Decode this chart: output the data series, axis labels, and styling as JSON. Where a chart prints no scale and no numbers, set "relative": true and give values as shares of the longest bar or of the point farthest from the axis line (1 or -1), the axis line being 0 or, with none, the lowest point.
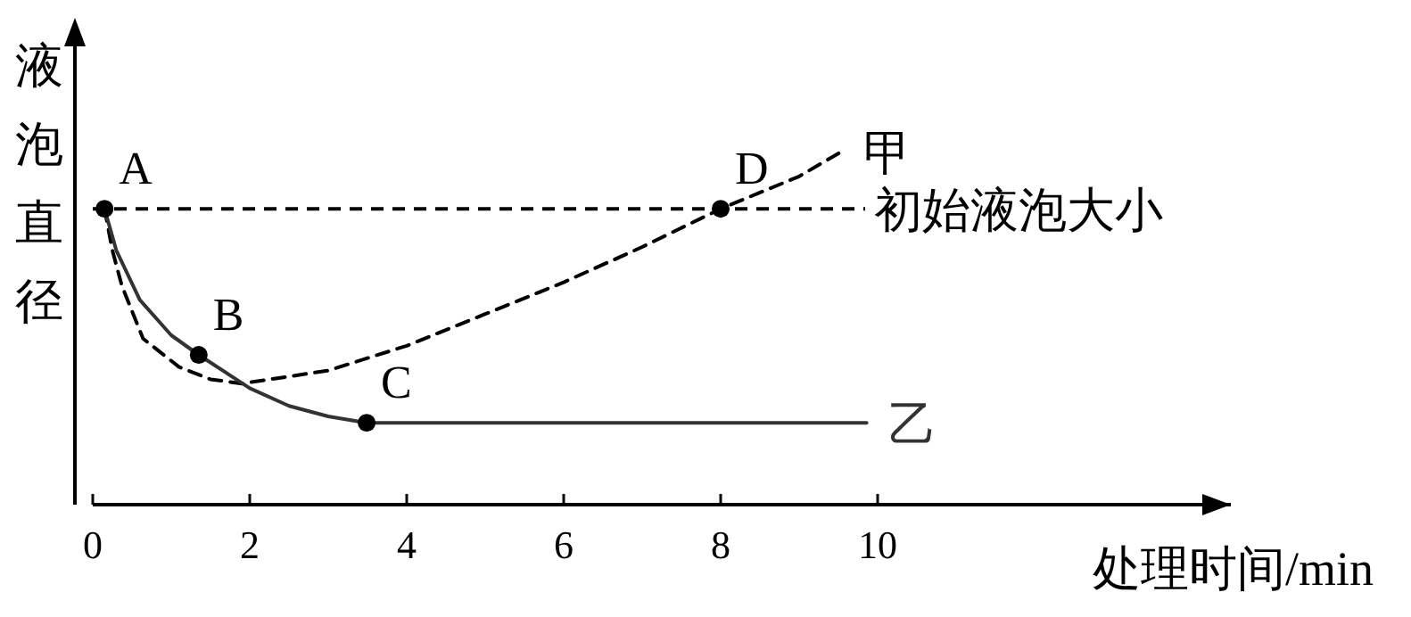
{
  "chart_data": {
    "type": "line",
    "relative": true,
    "xlabel": "处理时间/min",
    "ylabel": "液泡直径",
    "xlim": [
      0,
      14.5
    ],
    "xticks": [
      0,
      2,
      4,
      6,
      8,
      10
    ],
    "tick_labels": "x",
    "grid": false,
    "series": [
      {
        "name": "甲",
        "color": "#000000",
        "line_style": "dashed",
        "x": [
          0.15,
          0.25,
          0.37,
          0.64,
          1.1,
          1.5,
          1.9,
          3,
          4,
          5,
          6,
          7,
          8,
          9,
          9.54
        ],
        "values": [
          0.838,
          0.72,
          0.62,
          0.47,
          0.39,
          0.355,
          0.343,
          0.38,
          0.45,
          0.54,
          0.63,
          0.73,
          0.838,
          0.93,
          1
        ]
      },
      {
        "name": "乙",
        "color": "#333333",
        "line_style": "solid",
        "x": [
          0.15,
          0.3,
          0.6,
          1.0,
          1.35,
          2,
          2.5,
          3,
          3.49,
          9.86
        ],
        "values": [
          0.838,
          0.72,
          0.58,
          0.48,
          0.424,
          0.33,
          0.28,
          0.25,
          0.232,
          0.232
        ]
      }
    ],
    "ref_lines": [
      {
        "axis": "y",
        "value": 0.838,
        "label": "初始液泡大小",
        "line_style": "dashed",
        "color": "#000000"
      }
    ],
    "annotations": [
      {
        "text": "A",
        "x": 0.15,
        "y": 0.838
      },
      {
        "text": "B",
        "x": 1.35,
        "y": 0.424
      },
      {
        "text": "C",
        "x": 3.49,
        "y": 0.232
      },
      {
        "text": "D",
        "x": 8,
        "y": 0.838
      }
    ]
  }
}
